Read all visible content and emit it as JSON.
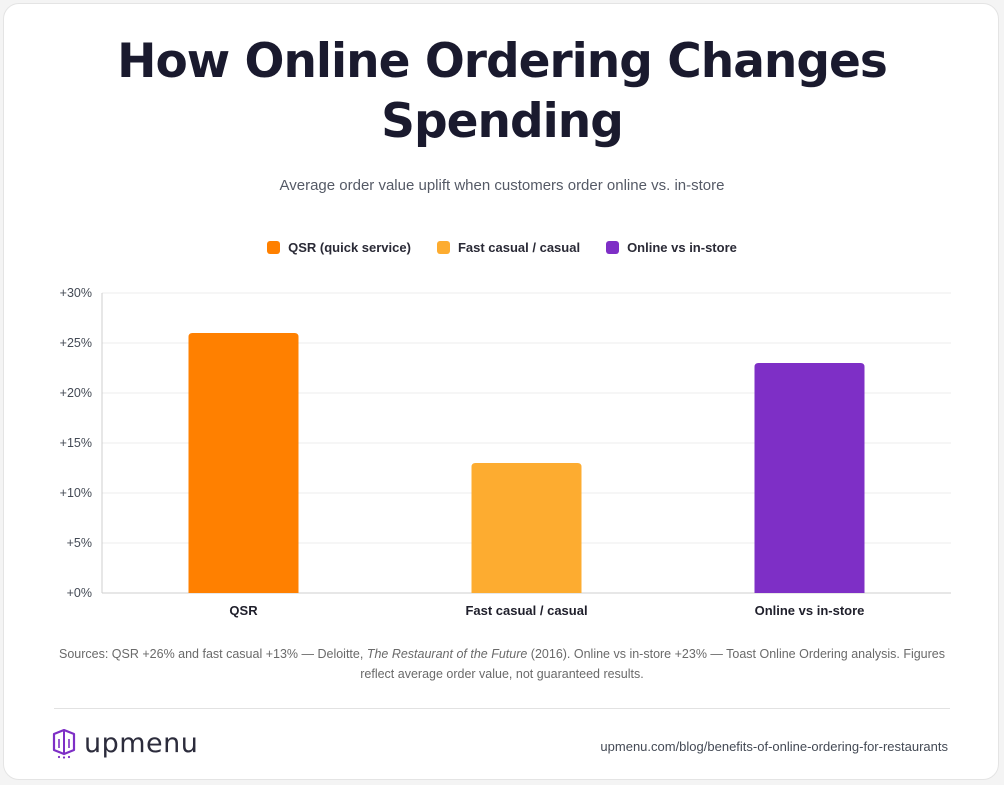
{
  "header": {
    "title_line1": "How Online Ordering Changes",
    "title_line2": "Spending",
    "subtitle": "Average order value uplift when customers order online vs. in-store"
  },
  "legend": [
    {
      "label": "QSR (quick service)",
      "color": "#ff8000"
    },
    {
      "label": "Fast casual / casual",
      "color": "#fdac30"
    },
    {
      "label": "Online vs in-store",
      "color": "#7e2fc6"
    }
  ],
  "chart_data": {
    "type": "bar",
    "categories": [
      "QSR",
      "Fast casual / casual",
      "Online vs in-store"
    ],
    "values": [
      26,
      13,
      23
    ],
    "colors": [
      "#ff8000",
      "#fdac30",
      "#7e2fc6"
    ],
    "yticks": [
      "+0%",
      "+5%",
      "+10%",
      "+15%",
      "+20%",
      "+25%",
      "+30%"
    ],
    "ylim": [
      0,
      30
    ],
    "ytick_step": 5,
    "grid": true,
    "legend_position": "top-center"
  },
  "footer": {
    "sources_prefix": "Sources: QSR +26% and fast casual +13% — Deloitte, ",
    "sources_italic": "The Restaurant of the Future",
    "sources_suffix": " (2016). Online vs in-store +23% — Toast Online Ordering analysis. Figures reflect average order value, not guaranteed results.",
    "logo_text": "upmenu",
    "logo_icon": "upmenu-logo-icon",
    "url": "upmenu.com/blog/benefits-of-online-ordering-for-restaurants"
  }
}
